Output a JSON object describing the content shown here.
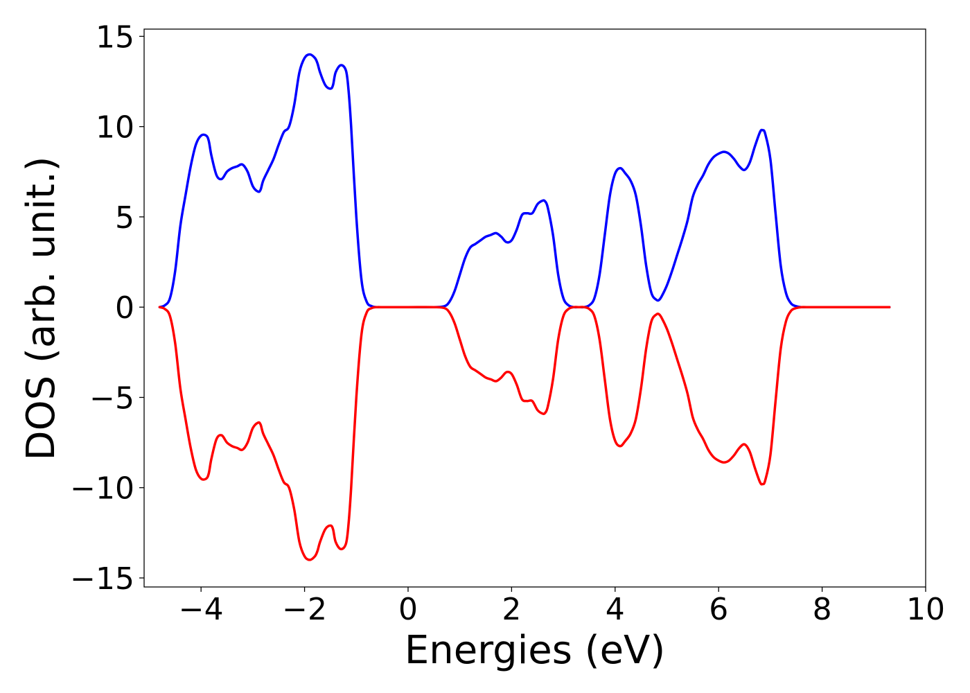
{
  "chart_data": {
    "type": "line",
    "title": "",
    "xlabel": "Energies (eV)",
    "ylabel": "DOS (arb. unit.)",
    "xlim": [
      -5.1,
      10
    ],
    "ylim": [
      -15.5,
      15.4
    ],
    "xticks": [
      -4,
      -2,
      0,
      2,
      4,
      6,
      8,
      10
    ],
    "xtick_labels": [
      "−4",
      "−2",
      "0",
      "2",
      "4",
      "6",
      "8",
      "10"
    ],
    "yticks": [
      15,
      10,
      5,
      0,
      -5,
      -10,
      -15
    ],
    "ytick_labels": [
      "15",
      "10",
      "5",
      "0",
      "−5",
      "−10",
      "−15"
    ],
    "grid": false,
    "legend": "none",
    "series": [
      {
        "color": "#0000ff",
        "x": [
          -4.8,
          -4.7,
          -4.6,
          -4.5,
          -4.4,
          -4.3,
          -4.2,
          -4.1,
          -4.0,
          -3.9,
          -3.85,
          -3.8,
          -3.7,
          -3.6,
          -3.5,
          -3.4,
          -3.3,
          -3.2,
          -3.1,
          -3.0,
          -2.9,
          -2.85,
          -2.8,
          -2.7,
          -2.6,
          -2.5,
          -2.4,
          -2.3,
          -2.2,
          -2.1,
          -2.0,
          -1.9,
          -1.8,
          -1.75,
          -1.7,
          -1.6,
          -1.5,
          -1.45,
          -1.4,
          -1.3,
          -1.2,
          -1.15,
          -1.1,
          -1.0,
          -0.9,
          -0.8,
          -0.7,
          -0.6,
          -0.5,
          0.0,
          0.5,
          0.7,
          0.8,
          0.9,
          1.0,
          1.1,
          1.2,
          1.3,
          1.4,
          1.5,
          1.6,
          1.7,
          1.8,
          1.9,
          2.0,
          2.1,
          2.2,
          2.3,
          2.4,
          2.5,
          2.6,
          2.65,
          2.7,
          2.8,
          2.9,
          3.0,
          3.1,
          3.2,
          3.3,
          3.4,
          3.5,
          3.6,
          3.7,
          3.8,
          3.9,
          4.0,
          4.1,
          4.2,
          4.3,
          4.4,
          4.5,
          4.6,
          4.7,
          4.8,
          4.85,
          4.9,
          5.0,
          5.1,
          5.2,
          5.3,
          5.4,
          5.5,
          5.6,
          5.7,
          5.8,
          5.9,
          6.0,
          6.1,
          6.2,
          6.3,
          6.4,
          6.5,
          6.6,
          6.7,
          6.8,
          6.85,
          6.9,
          7.0,
          7.1,
          7.2,
          7.3,
          7.4,
          7.5,
          7.6,
          7.7,
          8.0,
          8.5,
          9.0,
          9.3
        ],
        "y": [
          0.0,
          0.1,
          0.5,
          2.0,
          4.5,
          6.2,
          7.8,
          9.0,
          9.5,
          9.5,
          9.2,
          8.4,
          7.3,
          7.1,
          7.5,
          7.7,
          7.8,
          7.9,
          7.5,
          6.7,
          6.4,
          6.5,
          7.0,
          7.6,
          8.2,
          9.0,
          9.7,
          10.0,
          11.2,
          13.0,
          13.8,
          14.0,
          13.8,
          13.5,
          13.0,
          12.3,
          12.1,
          12.3,
          13.0,
          13.4,
          13.1,
          12.0,
          10.0,
          5.0,
          1.5,
          0.3,
          0.05,
          0.0,
          0.0,
          0.0,
          0.0,
          0.05,
          0.3,
          0.9,
          1.8,
          2.7,
          3.3,
          3.5,
          3.7,
          3.9,
          4.0,
          4.1,
          3.9,
          3.6,
          3.7,
          4.3,
          5.1,
          5.2,
          5.2,
          5.7,
          5.9,
          5.85,
          5.5,
          4.0,
          1.8,
          0.5,
          0.1,
          0.0,
          0.0,
          0.0,
          0.1,
          0.5,
          1.8,
          4.0,
          6.2,
          7.4,
          7.7,
          7.4,
          7.0,
          6.2,
          4.5,
          2.3,
          0.8,
          0.4,
          0.4,
          0.6,
          1.2,
          2.0,
          2.9,
          3.8,
          4.8,
          6.1,
          6.8,
          7.3,
          7.9,
          8.3,
          8.5,
          8.6,
          8.5,
          8.2,
          7.8,
          7.6,
          8.0,
          8.9,
          9.7,
          9.8,
          9.6,
          8.2,
          5.2,
          2.3,
          0.8,
          0.2,
          0.05,
          0.0,
          0.0,
          0.0,
          0.0,
          0.0,
          0.0
        ]
      },
      {
        "color": "#ff0000",
        "x": [
          -4.8,
          -4.7,
          -4.6,
          -4.5,
          -4.4,
          -4.3,
          -4.2,
          -4.1,
          -4.0,
          -3.9,
          -3.85,
          -3.8,
          -3.7,
          -3.6,
          -3.5,
          -3.4,
          -3.3,
          -3.2,
          -3.1,
          -3.0,
          -2.9,
          -2.85,
          -2.8,
          -2.7,
          -2.6,
          -2.5,
          -2.4,
          -2.3,
          -2.2,
          -2.1,
          -2.0,
          -1.9,
          -1.8,
          -1.75,
          -1.7,
          -1.6,
          -1.5,
          -1.45,
          -1.4,
          -1.3,
          -1.2,
          -1.15,
          -1.1,
          -1.0,
          -0.9,
          -0.8,
          -0.7,
          -0.6,
          -0.5,
          0.0,
          0.5,
          0.7,
          0.8,
          0.9,
          1.0,
          1.1,
          1.2,
          1.3,
          1.4,
          1.5,
          1.6,
          1.7,
          1.8,
          1.9,
          2.0,
          2.1,
          2.2,
          2.3,
          2.4,
          2.5,
          2.6,
          2.65,
          2.7,
          2.8,
          2.9,
          3.0,
          3.1,
          3.2,
          3.3,
          3.4,
          3.5,
          3.6,
          3.7,
          3.8,
          3.9,
          4.0,
          4.1,
          4.2,
          4.3,
          4.4,
          4.5,
          4.6,
          4.7,
          4.8,
          4.85,
          4.9,
          5.0,
          5.1,
          5.2,
          5.3,
          5.4,
          5.5,
          5.6,
          5.7,
          5.8,
          5.9,
          6.0,
          6.1,
          6.2,
          6.3,
          6.4,
          6.5,
          6.6,
          6.7,
          6.8,
          6.85,
          6.9,
          7.0,
          7.1,
          7.2,
          7.3,
          7.4,
          7.5,
          7.6,
          7.7,
          8.0,
          8.5,
          9.0,
          9.3
        ],
        "y": [
          0.0,
          -0.1,
          -0.5,
          -2.0,
          -4.5,
          -6.2,
          -7.8,
          -9.0,
          -9.5,
          -9.5,
          -9.2,
          -8.4,
          -7.3,
          -7.1,
          -7.5,
          -7.7,
          -7.8,
          -7.9,
          -7.5,
          -6.7,
          -6.4,
          -6.5,
          -7.0,
          -7.6,
          -8.2,
          -9.0,
          -9.7,
          -10.0,
          -11.2,
          -13.0,
          -13.8,
          -14.0,
          -13.8,
          -13.5,
          -13.0,
          -12.3,
          -12.1,
          -12.3,
          -13.0,
          -13.4,
          -13.1,
          -12.0,
          -10.0,
          -5.0,
          -1.5,
          -0.3,
          -0.05,
          0.0,
          0.0,
          0.0,
          0.0,
          -0.05,
          -0.3,
          -0.9,
          -1.8,
          -2.7,
          -3.3,
          -3.5,
          -3.7,
          -3.9,
          -4.0,
          -4.1,
          -3.9,
          -3.6,
          -3.7,
          -4.3,
          -5.1,
          -5.2,
          -5.2,
          -5.7,
          -5.9,
          -5.85,
          -5.5,
          -4.0,
          -1.8,
          -0.5,
          -0.1,
          0.0,
          0.0,
          0.0,
          -0.1,
          -0.5,
          -1.8,
          -4.0,
          -6.2,
          -7.4,
          -7.7,
          -7.4,
          -7.0,
          -6.2,
          -4.5,
          -2.3,
          -0.8,
          -0.4,
          -0.4,
          -0.6,
          -1.2,
          -2.0,
          -2.9,
          -3.8,
          -4.8,
          -6.1,
          -6.8,
          -7.3,
          -7.9,
          -8.3,
          -8.5,
          -8.6,
          -8.5,
          -8.2,
          -7.8,
          -7.6,
          -8.0,
          -8.9,
          -9.7,
          -9.8,
          -9.6,
          -8.2,
          -5.2,
          -2.3,
          -0.8,
          -0.2,
          -0.05,
          0.0,
          0.0,
          0.0,
          0.0,
          0.0,
          0.0
        ]
      }
    ]
  }
}
